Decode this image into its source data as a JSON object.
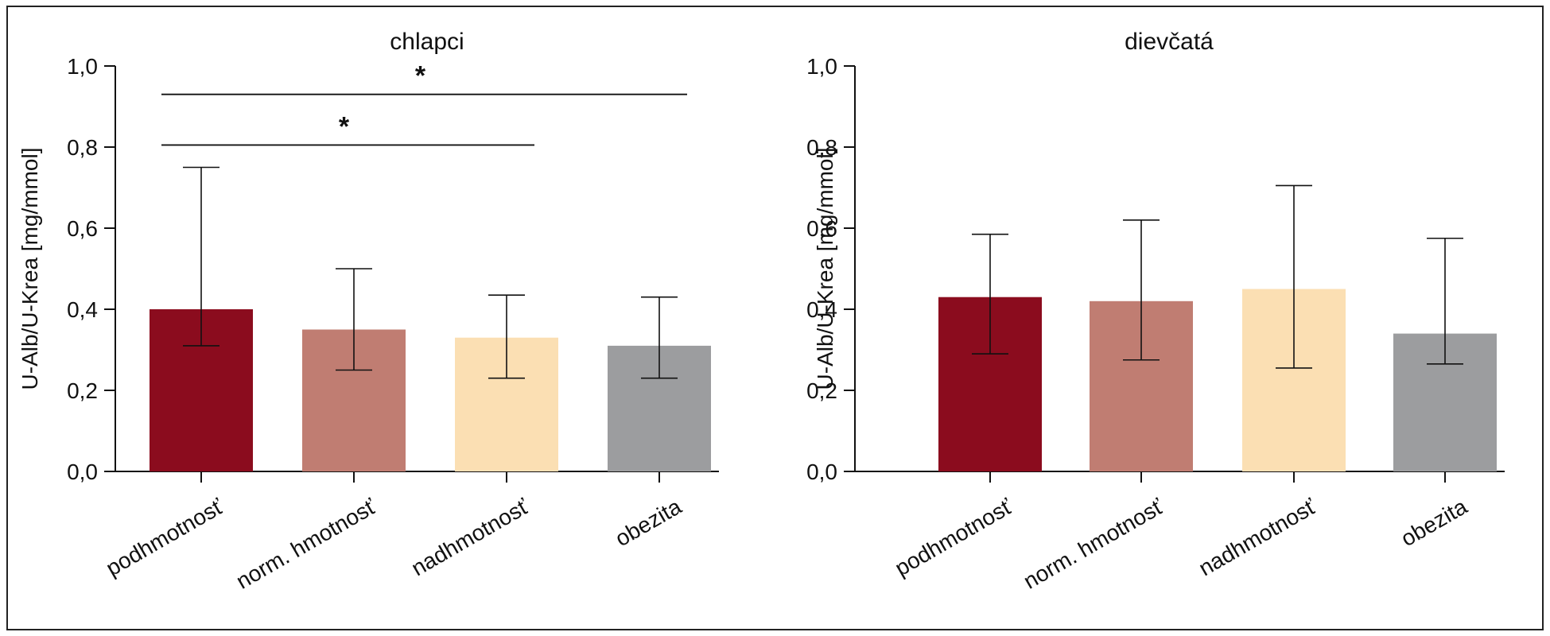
{
  "chart_data": [
    {
      "type": "bar",
      "title": "chlapci",
      "ylabel": "U-Alb/U-Krea [mg/mmol]",
      "xlabel": "",
      "ylim": [
        0,
        1.0
      ],
      "yticks": [
        "0,0",
        "0,2",
        "0,4",
        "0,6",
        "0,8",
        "1,0"
      ],
      "categories": [
        "podhmotnosť",
        "norm. hmotnosť",
        "nadhmotnosť",
        "obezita"
      ],
      "values": [
        0.4,
        0.35,
        0.33,
        0.31
      ],
      "error_low": [
        0.31,
        0.25,
        0.23,
        0.23
      ],
      "error_high": [
        0.75,
        0.5,
        0.435,
        0.43
      ],
      "colors": [
        "#8b0c1e",
        "#c07d72",
        "#fbdfb3",
        "#9c9d9f"
      ],
      "significance": [
        {
          "from": 0,
          "to": 3,
          "y": 0.93,
          "label": "*"
        },
        {
          "from": 0,
          "to": 2,
          "y": 0.805,
          "label": "*"
        }
      ]
    },
    {
      "type": "bar",
      "title": "dievčatá",
      "ylabel": "U-Alb/U-Krea [mg/mmol]",
      "xlabel": "",
      "ylim": [
        0,
        1.0
      ],
      "yticks": [
        "0,0",
        "0,2",
        "0,4",
        "0,6",
        "0,8",
        "1,0"
      ],
      "categories": [
        "podhmotnosť",
        "norm. hmotnosť",
        "nadhmotnosť",
        "obezita"
      ],
      "values": [
        0.43,
        0.42,
        0.45,
        0.34
      ],
      "error_low": [
        0.29,
        0.275,
        0.255,
        0.265
      ],
      "error_high": [
        0.585,
        0.62,
        0.705,
        0.575
      ],
      "colors": [
        "#8b0c1e",
        "#c07d72",
        "#fbdfb3",
        "#9c9d9f"
      ],
      "significance": []
    }
  ]
}
